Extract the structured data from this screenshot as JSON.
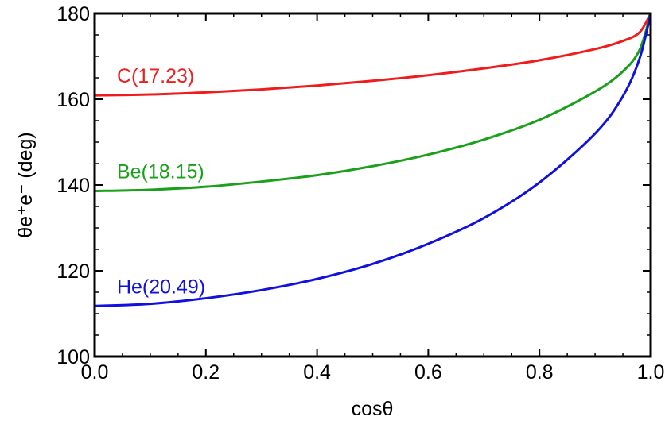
{
  "chart_data": {
    "type": "line",
    "title": "",
    "xlabel": "cosθ",
    "ylabel": "θe⁺e⁻ (deg)",
    "xlim": [
      0.0,
      1.0
    ],
    "ylim": [
      100,
      180
    ],
    "x_ticks": [
      "0.0",
      "0.2",
      "0.4",
      "0.6",
      "0.8",
      "1.0"
    ],
    "y_ticks": [
      "100",
      "120",
      "140",
      "160",
      "180"
    ],
    "grid": false,
    "legend": "inline labels",
    "series": [
      {
        "name": "C(17.23)",
        "color": "#ee1c1c",
        "x": [
          0.0,
          0.1,
          0.2,
          0.3,
          0.4,
          0.5,
          0.6,
          0.7,
          0.8,
          0.9,
          0.95,
          0.98,
          1.0
        ],
        "y": [
          160.9,
          161.1,
          161.6,
          162.3,
          163.2,
          164.3,
          165.6,
          167.2,
          169.1,
          171.7,
          173.6,
          175.6,
          180.0
        ]
      },
      {
        "name": "Be(18.15)",
        "color": "#1aa01a",
        "x": [
          0.0,
          0.1,
          0.2,
          0.3,
          0.4,
          0.5,
          0.6,
          0.7,
          0.8,
          0.9,
          0.95,
          0.98,
          1.0
        ],
        "y": [
          138.6,
          138.9,
          139.6,
          140.8,
          142.3,
          144.4,
          147.1,
          150.6,
          155.2,
          161.8,
          166.5,
          171.5,
          180.0
        ]
      },
      {
        "name": "He(20.49)",
        "color": "#1010e0",
        "x": [
          0.0,
          0.1,
          0.2,
          0.3,
          0.4,
          0.5,
          0.6,
          0.7,
          0.8,
          0.9,
          0.95,
          0.98,
          1.0
        ],
        "y": [
          111.8,
          112.3,
          113.6,
          115.5,
          118.1,
          121.6,
          126.3,
          132.3,
          140.6,
          152.0,
          160.7,
          169.5,
          180.0
        ]
      }
    ]
  }
}
